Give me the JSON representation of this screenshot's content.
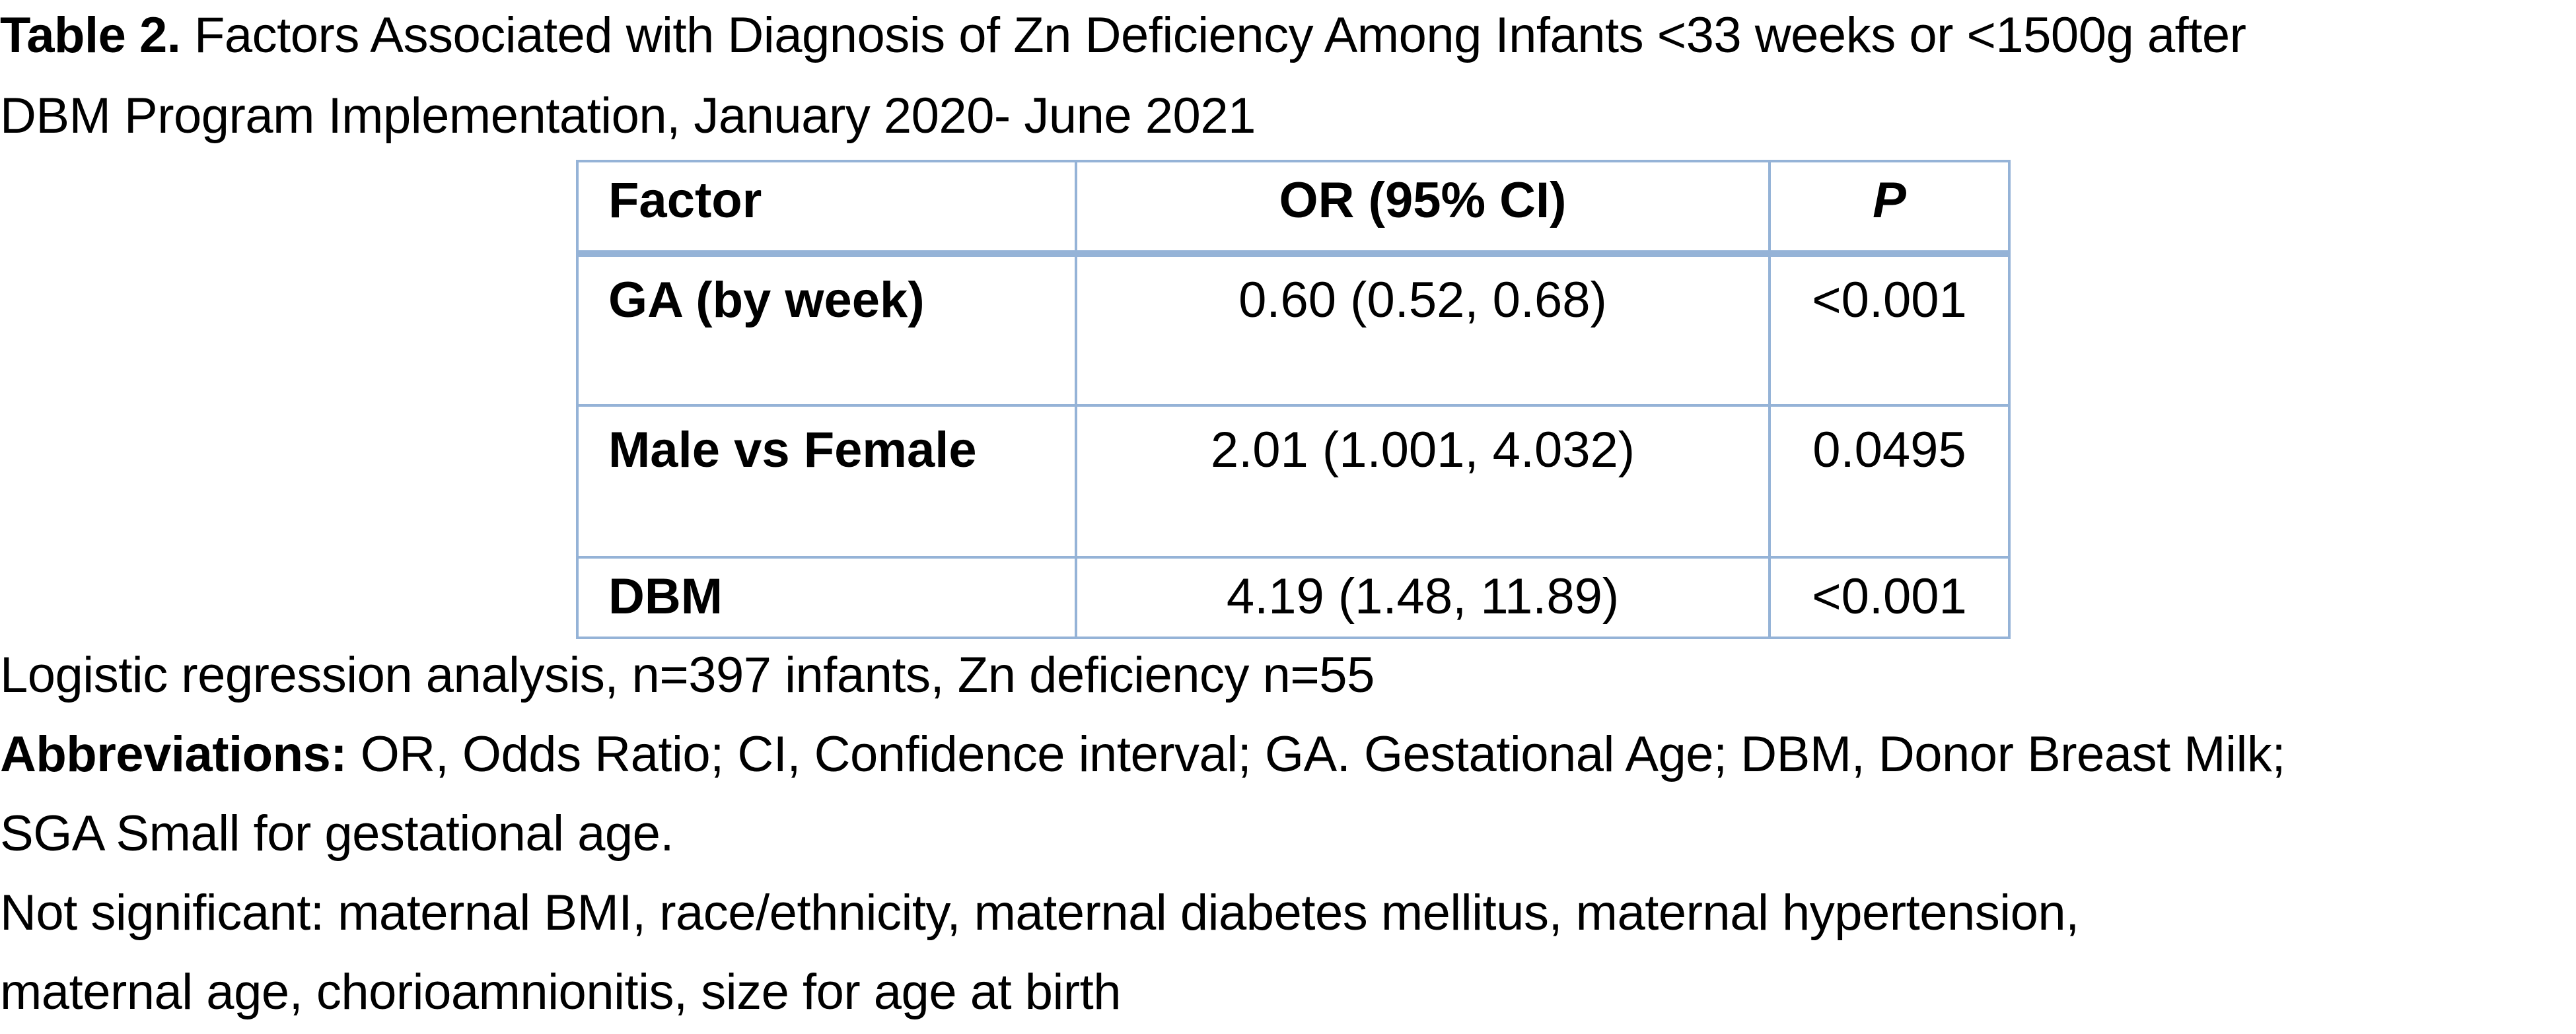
{
  "title": {
    "label": "Table 2.",
    "line1_text": " Factors Associated with Diagnosis of Zn Deficiency Among Infants <33 weeks or <1500g after",
    "line2_text": "DBM Program Implementation, January 2020- June 2021"
  },
  "table": {
    "headers": {
      "factor": "Factor",
      "or": "OR (95% CI)",
      "p": "P"
    },
    "rows": [
      {
        "factor": "GA (by week)",
        "or": "0.60 (0.52, 0.68)",
        "p": "<0.001"
      },
      {
        "factor": "Male vs Female",
        "or": "2.01 (1.001, 4.032)",
        "p": "0.0495"
      },
      {
        "factor": "DBM",
        "or": "4.19 (1.48, 11.89)",
        "p": "<0.001"
      }
    ],
    "border_color": "#95b3d7"
  },
  "notes": {
    "analysis": "Logistic regression analysis, n=397 infants, Zn deficiency n=55",
    "abbrev_label": "Abbreviations:",
    "abbrev_line1": " OR, Odds Ratio; CI, Confidence interval; GA. Gestational Age; DBM, Donor Breast Milk;",
    "abbrev_line2": "SGA Small for gestational age.",
    "not_significant_line1": "Not significant: maternal BMI, race/ethnicity, maternal diabetes mellitus, maternal hypertension,",
    "not_significant_line2": "maternal age, chorioamnionitis, size for age at birth"
  }
}
